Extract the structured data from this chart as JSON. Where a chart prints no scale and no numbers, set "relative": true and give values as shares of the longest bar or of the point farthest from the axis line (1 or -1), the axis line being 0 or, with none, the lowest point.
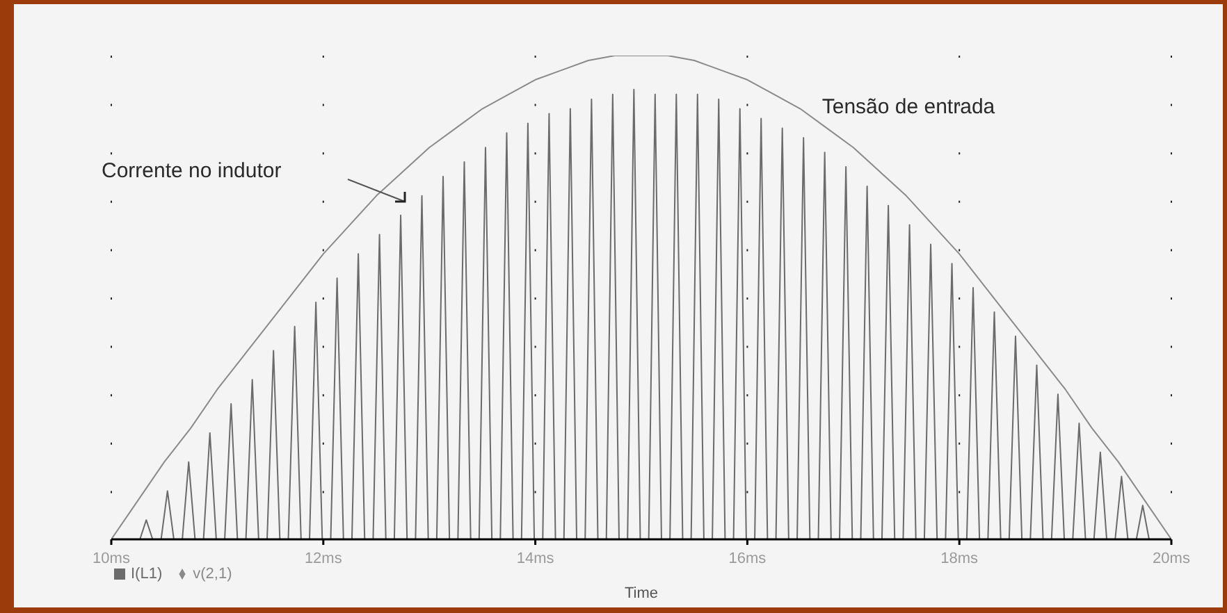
{
  "chart_data": {
    "type": "line",
    "xlabel": "Time",
    "relative": true,
    "grid": "x",
    "legend": "bottom left",
    "xlim": [
      10,
      20
    ],
    "xticks": [
      {
        "value": 10,
        "label": "10ms"
      },
      {
        "value": 12,
        "label": "12ms"
      },
      {
        "value": 14,
        "label": "14ms"
      },
      {
        "value": 16,
        "label": "16ms"
      },
      {
        "value": 18,
        "label": "18ms"
      },
      {
        "value": 20,
        "label": "20ms"
      }
    ],
    "series": [
      {
        "name": "I(L1)",
        "color": "#6b6b6b",
        "x": [
          10,
          10.27,
          10.33,
          10.39,
          10.47,
          10.53,
          10.59,
          10.67,
          10.73,
          10.79,
          10.87,
          10.93,
          10.99,
          11.07,
          11.13,
          11.19,
          11.27,
          11.33,
          11.39,
          11.47,
          11.53,
          11.59,
          11.67,
          11.73,
          11.79,
          11.87,
          11.93,
          11.99,
          12.07,
          12.13,
          12.19,
          12.27,
          12.33,
          12.39,
          12.47,
          12.53,
          12.59,
          12.67,
          12.73,
          12.79,
          12.87,
          12.93,
          12.99,
          13.07,
          13.13,
          13.19,
          13.27,
          13.33,
          13.39,
          13.47,
          13.53,
          13.59,
          13.67,
          13.73,
          13.79,
          13.87,
          13.93,
          13.99,
          14.07,
          14.13,
          14.19,
          14.27,
          14.33,
          14.39,
          14.47,
          14.53,
          14.59,
          14.67,
          14.73,
          14.79,
          14.87,
          14.93,
          14.99,
          15.07,
          15.13,
          15.19,
          15.27,
          15.33,
          15.39,
          15.47,
          15.53,
          15.59,
          15.67,
          15.73,
          15.79,
          15.87,
          15.93,
          15.99,
          16.07,
          16.13,
          16.19,
          16.27,
          16.33,
          16.39,
          16.47,
          16.53,
          16.59,
          16.67,
          16.73,
          16.79,
          16.87,
          16.93,
          16.99,
          17.07,
          17.13,
          17.19,
          17.27,
          17.33,
          17.39,
          17.47,
          17.53,
          17.59,
          17.67,
          17.73,
          17.79,
          17.87,
          17.93,
          17.99,
          18.07,
          18.13,
          18.19,
          18.27,
          18.33,
          18.39,
          18.47,
          18.53,
          18.59,
          18.67,
          18.73,
          18.79,
          18.87,
          18.93,
          18.99,
          19.07,
          19.13,
          19.19,
          19.27,
          19.33,
          19.39,
          19.47,
          19.53,
          19.59,
          19.67,
          19.73,
          19.79,
          20
        ],
        "values": [
          0,
          0,
          0.04,
          0,
          0,
          0.1,
          0,
          0,
          0.16,
          0,
          0,
          0.22,
          0,
          0,
          0.28,
          0,
          0,
          0.33,
          0,
          0,
          0.39,
          0,
          0,
          0.44,
          0,
          0,
          0.49,
          0,
          0,
          0.54,
          0,
          0,
          0.59,
          0,
          0,
          0.63,
          0,
          0,
          0.67,
          0,
          0,
          0.71,
          0,
          0,
          0.75,
          0,
          0,
          0.78,
          0,
          0,
          0.81,
          0,
          0,
          0.84,
          0,
          0,
          0.86,
          0,
          0,
          0.88,
          0,
          0,
          0.89,
          0,
          0,
          0.91,
          0,
          0,
          0.92,
          0,
          0,
          0.93,
          0,
          0,
          0.92,
          0,
          0,
          0.92,
          0,
          0,
          0.92,
          0,
          0,
          0.91,
          0,
          0,
          0.89,
          0,
          0,
          0.87,
          0,
          0,
          0.85,
          0,
          0,
          0.83,
          0,
          0,
          0.8,
          0,
          0,
          0.77,
          0,
          0,
          0.73,
          0,
          0,
          0.69,
          0,
          0,
          0.65,
          0,
          0,
          0.61,
          0,
          0,
          0.57,
          0,
          0,
          0.52,
          0,
          0,
          0.47,
          0,
          0,
          0.42,
          0,
          0,
          0.36,
          0,
          0,
          0.3,
          0,
          0,
          0.24,
          0,
          0,
          0.18,
          0,
          0,
          0.13,
          0,
          0,
          0.07,
          0,
          0
        ]
      },
      {
        "name": "v(2,1)",
        "color": "#8a8a8a",
        "x": [
          10,
          10.25,
          10.5,
          10.75,
          11,
          11.25,
          11.5,
          11.75,
          12,
          12.25,
          12.5,
          12.75,
          13,
          13.25,
          13.5,
          13.75,
          14,
          14.25,
          14.5,
          14.75,
          15,
          15.25,
          15.5,
          15.75,
          16,
          16.25,
          16.5,
          16.75,
          17,
          17.25,
          17.5,
          17.75,
          18,
          18.25,
          18.5,
          18.75,
          19,
          19.25,
          19.5,
          19.75,
          20
        ],
        "values": [
          0,
          0.08,
          0.16,
          0.23,
          0.31,
          0.38,
          0.45,
          0.52,
          0.59,
          0.65,
          0.71,
          0.76,
          0.81,
          0.85,
          0.89,
          0.92,
          0.95,
          0.97,
          0.99,
          1,
          1,
          1,
          0.99,
          0.97,
          0.95,
          0.92,
          0.89,
          0.85,
          0.81,
          0.76,
          0.71,
          0.65,
          0.59,
          0.52,
          0.45,
          0.38,
          0.31,
          0.23,
          0.16,
          0.08,
          0
        ]
      }
    ],
    "annotations": [
      "Corrente no indutor",
      "Tensão de entrada"
    ]
  }
}
